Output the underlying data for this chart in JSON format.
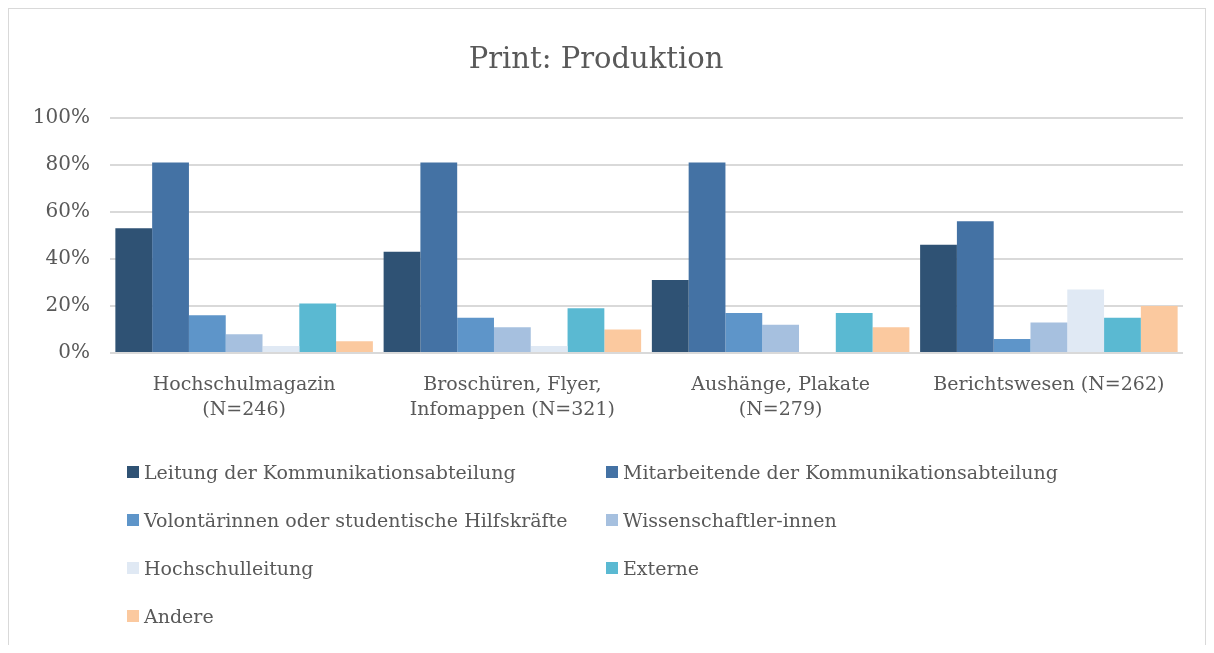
{
  "chart_data": {
    "type": "bar",
    "title": "Print: Produktion",
    "categories": [
      "Hochschulmagazin (N=246)",
      "Broschüren, Flyer, Infomappen (N=321)",
      "Aushänge, Plakate (N=279)",
      "Berichtswesen (N=262)"
    ],
    "series": [
      {
        "name": "Leitung der Kommunikationsabteilung",
        "color": "#2f5274",
        "values": [
          53,
          43,
          31,
          46
        ]
      },
      {
        "name": "Mitarbeitende der Kommunikationsabteilung",
        "color": "#4472a4",
        "values": [
          81,
          81,
          81,
          56
        ]
      },
      {
        "name": "Volontärinnen oder studentische Hilfskräfte",
        "color": "#5e95c9",
        "values": [
          16,
          15,
          17,
          6
        ]
      },
      {
        "name": "Wissenschaftler-innen",
        "color": "#a6c0df",
        "values": [
          8,
          11,
          12,
          13
        ]
      },
      {
        "name": "Hochschulleitung",
        "color": "#e0e9f4",
        "values": [
          3,
          3,
          0,
          27
        ]
      },
      {
        "name": "Externe",
        "color": "#5ab9d2",
        "values": [
          21,
          19,
          17,
          15
        ]
      },
      {
        "name": "Andere",
        "color": "#fbc99f",
        "values": [
          5,
          10,
          11,
          20
        ]
      }
    ],
    "ylim": [
      0,
      100
    ],
    "yticks": [
      {
        "value": 0,
        "label": "0%"
      },
      {
        "value": 20,
        "label": "20%"
      },
      {
        "value": 40,
        "label": "40%"
      },
      {
        "value": 60,
        "label": "60%"
      },
      {
        "value": 80,
        "label": "80%"
      },
      {
        "value": 100,
        "label": "100%"
      }
    ],
    "grid": "y",
    "legend": "bottom"
  }
}
